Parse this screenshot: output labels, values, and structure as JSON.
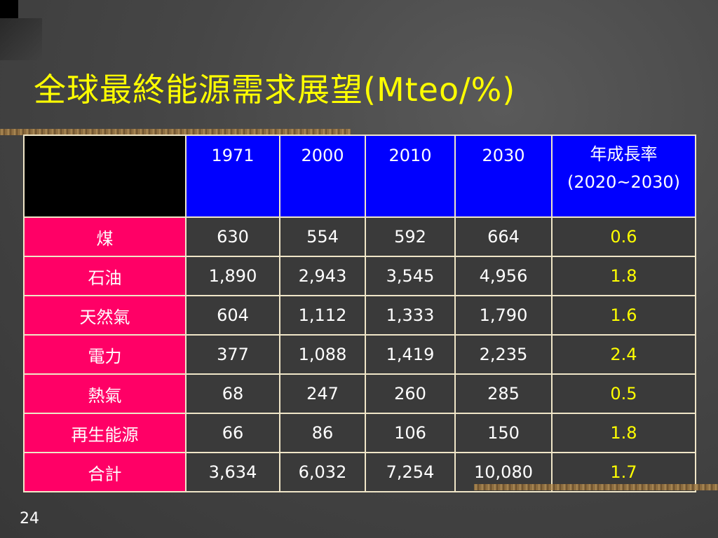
{
  "slide": {
    "title": "全球最終能源需求展望(Mteo/%)",
    "page_number": "24"
  },
  "table": {
    "columns": [
      {
        "label": "1971"
      },
      {
        "label": "2000"
      },
      {
        "label": "2010"
      },
      {
        "label": "2030"
      }
    ],
    "rate_header": {
      "line1": "年成長率",
      "line2": "(2020~2030)"
    },
    "rows": [
      {
        "label": "煤",
        "values": [
          "630",
          "554",
          "592",
          "664"
        ],
        "rate": "0.6"
      },
      {
        "label": "石油",
        "values": [
          "1,890",
          "2,943",
          "3,545",
          "4,956"
        ],
        "rate": "1.8"
      },
      {
        "label": "天然氣",
        "values": [
          "604",
          "1,112",
          "1,333",
          "1,790"
        ],
        "rate": "1.6"
      },
      {
        "label": "電力",
        "values": [
          "377",
          "1,088",
          "1,419",
          "2,235"
        ],
        "rate": "2.4"
      },
      {
        "label": "熱氣",
        "values": [
          "68",
          "247",
          "260",
          "285"
        ],
        "rate": "0.5"
      },
      {
        "label": "再生能源",
        "values": [
          "66",
          "86",
          "106",
          "150"
        ],
        "rate": "1.8"
      },
      {
        "label": "合計",
        "values": [
          "3,634",
          "6,032",
          "7,254",
          "10,080"
        ],
        "rate": "1.7"
      }
    ]
  },
  "colors": {
    "background": "#444444",
    "title": "#ffff00",
    "header_fill": "#0000ff",
    "row_label_fill": "#ff0066",
    "rate_text": "#ffff00",
    "cell_text": "#ffffff"
  }
}
